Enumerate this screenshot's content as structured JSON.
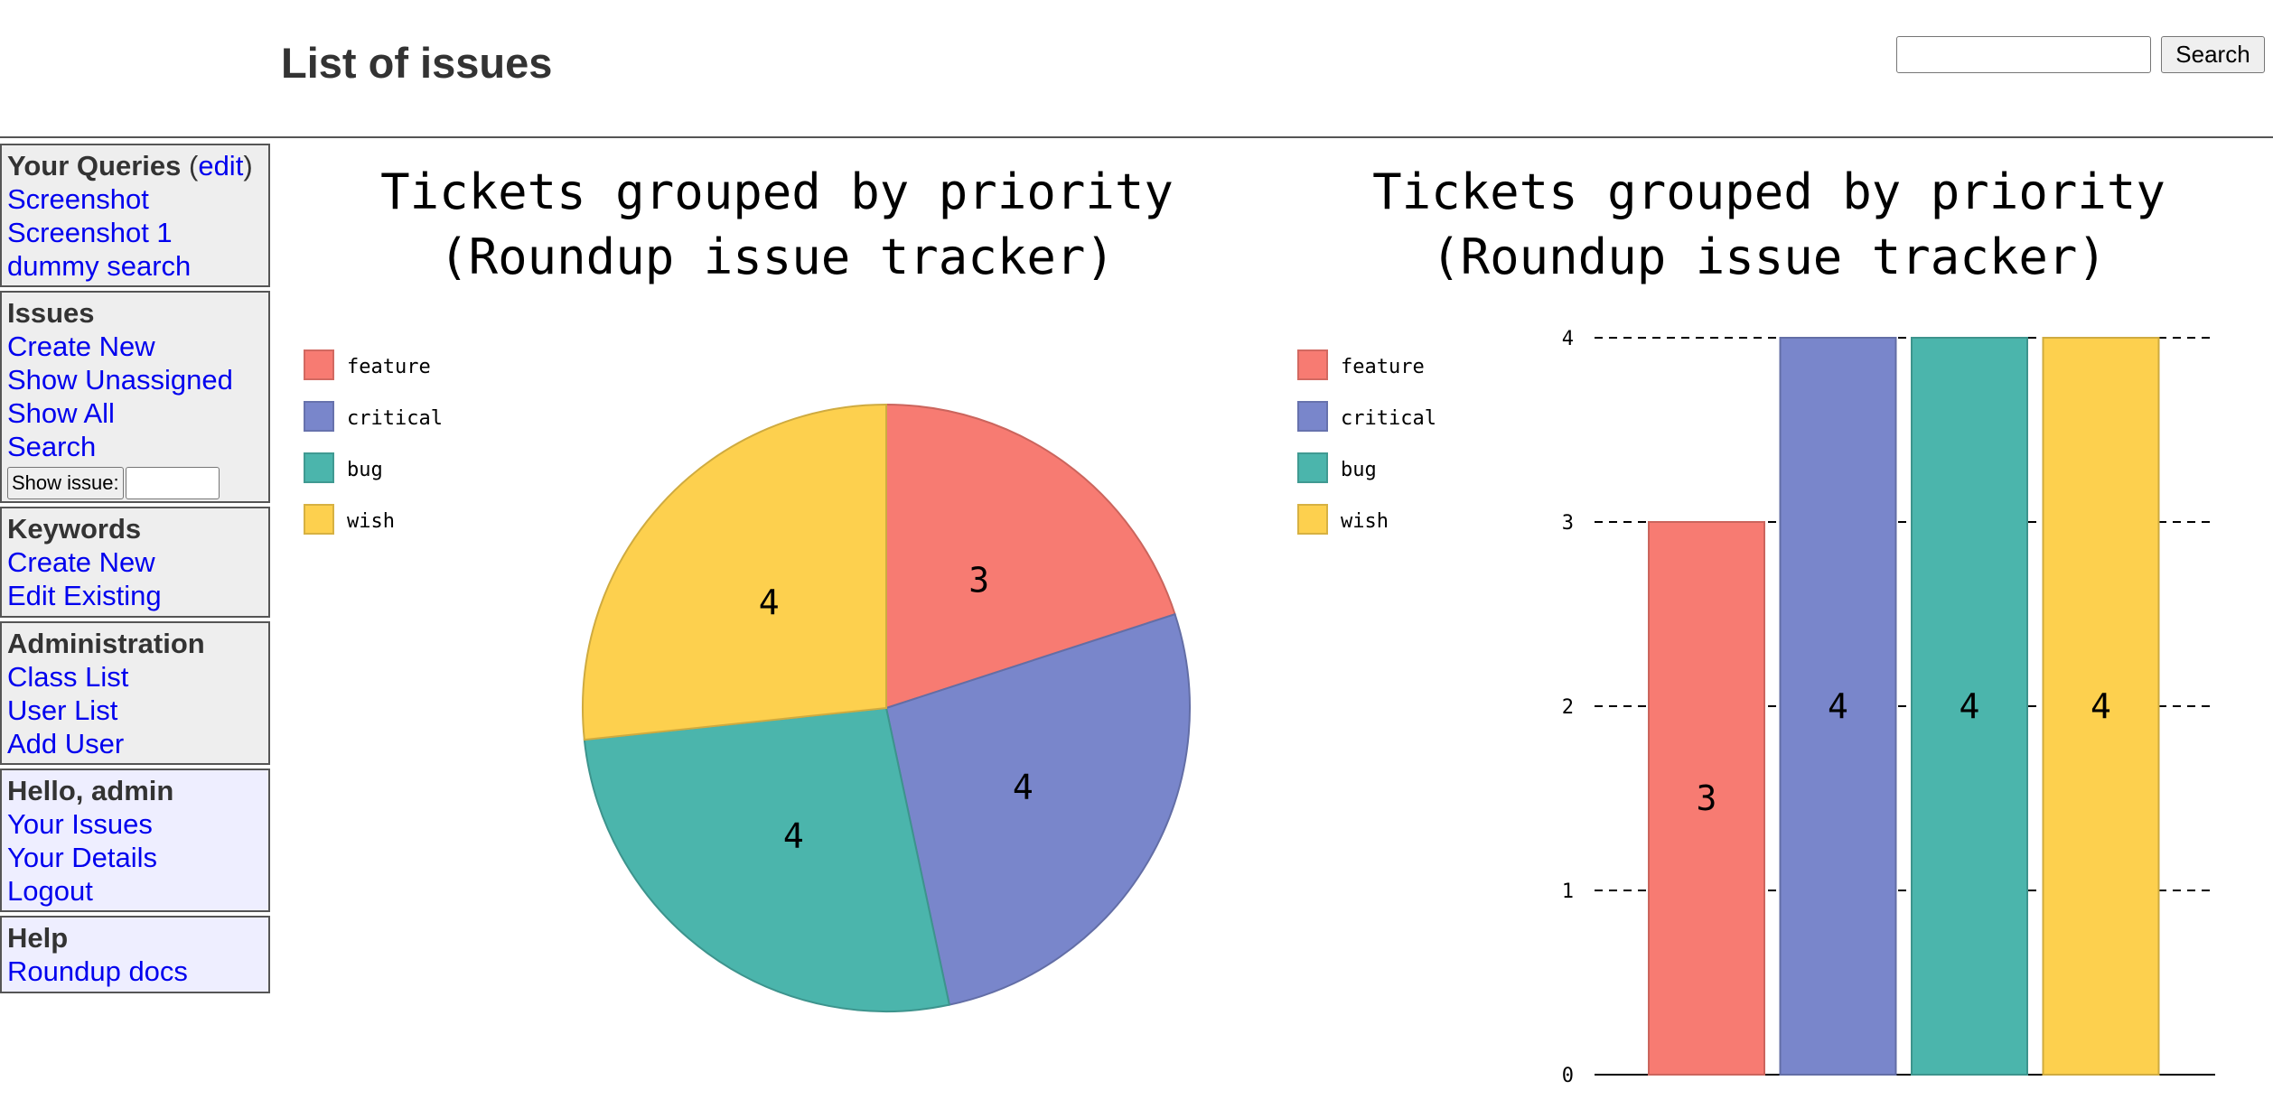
{
  "header": {
    "title": "List of issues",
    "search_button": "Search",
    "search_value": ""
  },
  "sidebar": {
    "queries": {
      "title": "Your Queries",
      "edit_open": "(",
      "edit_link": "edit",
      "edit_close": ")",
      "items": [
        "Screenshot",
        "Screenshot 1",
        "dummy search"
      ]
    },
    "issues": {
      "title": "Issues",
      "items": [
        "Create New",
        "Show Unassigned",
        "Show All",
        "Search"
      ],
      "show_issue_button": "Show issue:",
      "show_issue_value": ""
    },
    "keywords": {
      "title": "Keywords",
      "items": [
        "Create New",
        "Edit Existing"
      ]
    },
    "administration": {
      "title": "Administration",
      "items": [
        "Class List",
        "User List",
        "Add User"
      ]
    },
    "user": {
      "title": "Hello, admin",
      "items": [
        "Your Issues",
        "Your Details",
        "Logout"
      ]
    },
    "help": {
      "title": "Help",
      "items": [
        "Roundup docs"
      ]
    }
  },
  "colors": {
    "feature": "#f77b72",
    "critical": "#7986cb",
    "bug": "#4bb5ac",
    "wish": "#fdd04e"
  },
  "chart_data": [
    {
      "type": "pie",
      "title": [
        "Tickets grouped by priority",
        "(Roundup issue tracker)"
      ],
      "categories": [
        "feature",
        "critical",
        "bug",
        "wish"
      ],
      "values": [
        3,
        4,
        4,
        4
      ],
      "legend": "top-left"
    },
    {
      "type": "bar",
      "title": [
        "Tickets grouped by priority",
        "(Roundup issue tracker)"
      ],
      "categories": [
        "feature",
        "critical",
        "bug",
        "wish"
      ],
      "values": [
        3,
        4,
        4,
        4
      ],
      "ylim": [
        0,
        4
      ],
      "yticks": [
        "0",
        "1",
        "2",
        "3",
        "4"
      ],
      "grid": true,
      "legend": "top-left"
    }
  ]
}
